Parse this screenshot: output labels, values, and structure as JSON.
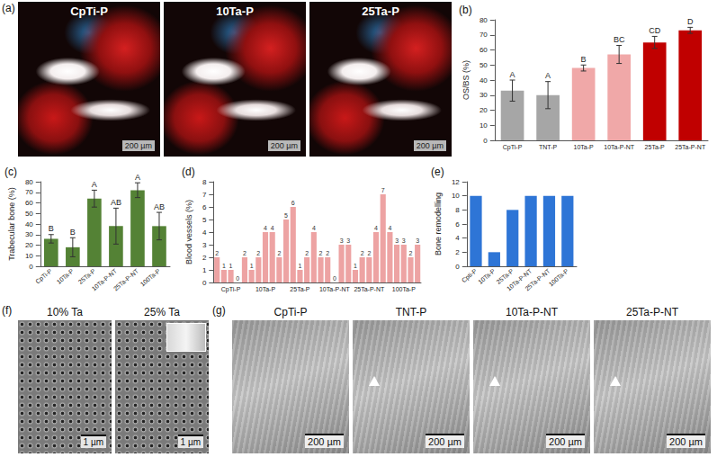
{
  "chart_data": [
    {
      "type": "bar",
      "title": "(b)",
      "categories": [
        "CpTi-P",
        "TNT-P",
        "10Ta-P",
        "10Ta-P-NT",
        "25Ta-P",
        "25Ta-P-NT"
      ],
      "values": [
        33,
        30,
        48,
        57,
        65,
        73
      ],
      "errors": [
        7,
        9,
        2,
        6,
        4,
        2
      ],
      "annotations": [
        "A",
        "A",
        "B",
        "BC",
        "CD",
        "D"
      ],
      "colors": [
        "#a6a6a6",
        "#a6a6a6",
        "#f0a8a8",
        "#f0a8a8",
        "#c00000",
        "#c00000"
      ],
      "ylabel": "OS/BS (%)",
      "ylim": [
        0,
        80
      ],
      "yticks": [
        0,
        10,
        20,
        30,
        40,
        50,
        60,
        70,
        80
      ],
      "grid": false
    },
    {
      "type": "bar",
      "title": "(c)",
      "categories": [
        "CpTi-P",
        "10Ta-P",
        "25Ta-P",
        "10Ta-P-NT",
        "25Ta-P-NT",
        "100Ta-P"
      ],
      "values": [
        26,
        18,
        64,
        38,
        72,
        38
      ],
      "errors": [
        4,
        9,
        8,
        17,
        7,
        13
      ],
      "annotations": [
        "B",
        "B",
        "A",
        "AB",
        "A",
        "AB"
      ],
      "color": "#548235",
      "ylabel": "Trabecular bone (%)",
      "ylim": [
        0,
        80
      ],
      "yticks": [
        0,
        10,
        20,
        30,
        40,
        50,
        60,
        70,
        80
      ],
      "grid": false
    },
    {
      "type": "bar",
      "title": "(d)",
      "categories": [
        null,
        null,
        "CpTi-P",
        null,
        null,
        null,
        null,
        "10Ta-P",
        null,
        null,
        null,
        null,
        "25Ta-P",
        null,
        null,
        null,
        null,
        "10Ta-P-NT",
        null,
        null,
        null,
        null,
        "25Ta-P-NT",
        null,
        null,
        null,
        null,
        "100Ta-P",
        null,
        null
      ],
      "values": [
        2,
        1,
        1,
        0,
        2,
        1,
        2,
        4,
        4,
        2,
        5,
        6,
        1,
        2,
        4,
        2,
        2,
        0,
        3,
        3,
        1,
        2,
        2,
        4,
        7,
        4,
        3,
        3,
        2,
        3
      ],
      "data_labels": true,
      "color": "#eda3a3",
      "ylabel": "Blood vessels (%)",
      "ylim": [
        0,
        8
      ],
      "yticks": [
        0,
        1,
        2,
        3,
        4,
        5,
        6,
        7,
        8
      ],
      "grid": false
    },
    {
      "type": "bar",
      "title": "(e)",
      "categories": [
        "Cpti-P",
        "10Ta-P",
        "25Ta-P",
        "10Ta-P-NT",
        "25Ta-P-NT",
        "100Ta-P"
      ],
      "values": [
        10,
        2,
        8,
        10,
        10,
        10
      ],
      "color": "#2e75d6",
      "ylabel": "Bone remodelling",
      "ylim": [
        0,
        12
      ],
      "yticks": [
        0,
        2,
        4,
        6,
        8,
        10,
        12
      ],
      "grid": false
    }
  ],
  "image_panels": [
    {
      "panel": "(a)",
      "images": [
        {
          "label": "CpTi-P",
          "scale_bar": "200 µm"
        },
        {
          "label": "10Ta-P",
          "scale_bar": "200 µm"
        },
        {
          "label": "25Ta-P",
          "scale_bar": "200 µm"
        }
      ]
    },
    {
      "panel": "(f)",
      "images": [
        {
          "label": "10% Ta",
          "scale_bar": "1 µm"
        },
        {
          "label": "25% Ta",
          "scale_bar": "1 µm"
        }
      ]
    },
    {
      "panel": "(g)",
      "images": [
        {
          "label": "CpTi-P",
          "scale_bar": "200 µm"
        },
        {
          "label": "TNT-P",
          "scale_bar": "200 µm"
        },
        {
          "label": "10Ta-P-NT",
          "scale_bar": "200 µm"
        },
        {
          "label": "25Ta-P-NT",
          "scale_bar": "200 µm"
        }
      ]
    }
  ]
}
